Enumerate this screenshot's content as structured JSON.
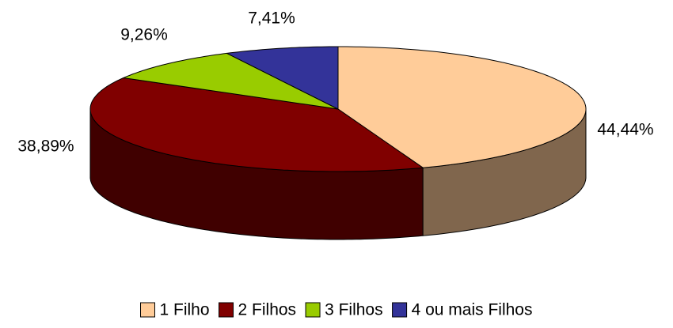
{
  "chart_data": {
    "type": "pie3d",
    "categories": [
      "1 Filho",
      "2 Filhos",
      "3 Filhos",
      "4 ou mais Filhos"
    ],
    "values": [
      44.44,
      38.89,
      9.26,
      7.41
    ],
    "value_labels": [
      "44,44%",
      "38,89%",
      "9,26%",
      "7,41%"
    ],
    "colors": [
      "#FFCC99",
      "#800000",
      "#99CC00",
      "#333399"
    ],
    "legend": "bottom"
  }
}
